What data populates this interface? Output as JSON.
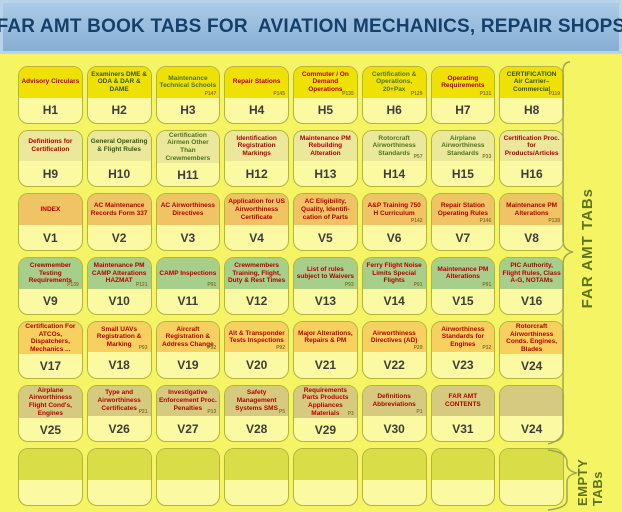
{
  "title_bar": {
    "text": "FAR AMT BOOK TABS FOR  AVIATION MECHANICS, REPAIR SHOPS"
  },
  "side_labels": {
    "far_amt_tabs": "FAR AMT TABs",
    "empty_line1": "EMPTY",
    "empty_line2": "TABs"
  },
  "colors": {
    "page_bg": "#f5f464",
    "titlebar_bg": "#8cb4d8",
    "titlebar_text": "#16406a",
    "card_body": "#fbf9a2",
    "card_border": "#b2b43c",
    "brace": "#9aa452",
    "side_text": "#5e731c",
    "red": "#b30000",
    "green": "#49761d",
    "dark_green": "#2f5715"
  },
  "grid": {
    "rows": [
      {
        "name": "row-1",
        "header_color": "#efe104",
        "cards": [
          {
            "title": "Advisory Circulars",
            "page": "",
            "label": "H1",
            "color": "red"
          },
          {
            "title": "Examiners DME & ODA & DAR & DAME",
            "page": "",
            "label": "H2",
            "color": "dark_green"
          },
          {
            "title": "Maintenance Technical Schools",
            "page": "P147",
            "label": "H3",
            "color": "green"
          },
          {
            "title": "Repair Stations",
            "page": "P145",
            "label": "H4",
            "color": "red"
          },
          {
            "title": "Commuter / On Demand Operations",
            "page": "P135",
            "label": "H5",
            "color": "red"
          },
          {
            "title": "Certification & Operations, 20+Pax",
            "page": "P129",
            "label": "H6",
            "color": "green"
          },
          {
            "title": "Operating Requirements",
            "page": "P131",
            "label": "H7",
            "color": "red"
          },
          {
            "title": "CERTIFICATION Air Carrier– Commercial",
            "page": "P119",
            "label": "H8",
            "color": "dark_green"
          }
        ]
      },
      {
        "name": "row-2",
        "header_color": "#ebe89c",
        "cards": [
          {
            "title": "Definitions for Certification",
            "page": "",
            "label": "H9",
            "color": "red"
          },
          {
            "title": "General Operating & Flight Rules",
            "page": "",
            "label": "H10",
            "color": "dark_green"
          },
          {
            "title": "Certification Airmen Other Than Crewmembers",
            "page": "",
            "label": "H11",
            "color": "green"
          },
          {
            "title": "Identification Registration Markings",
            "page": "",
            "label": "H12",
            "color": "red"
          },
          {
            "title": "Maintenance PM Rebuilding Alteration",
            "page": "",
            "label": "H13",
            "color": "red"
          },
          {
            "title": "Rotorcraft Airworthiness Standards",
            "page": "P57",
            "label": "H14",
            "color": "green"
          },
          {
            "title": "Airplane Airworthiness Standards",
            "page": "P33",
            "label": "H15",
            "color": "green"
          },
          {
            "title": "Certification Proc. for Products/Articles",
            "page": "",
            "label": "H16",
            "color": "red"
          }
        ]
      },
      {
        "name": "row-3",
        "header_color": "#f0c465",
        "cards": [
          {
            "title": "INDEX",
            "page": "",
            "label": "V1",
            "color": "red"
          },
          {
            "title": "AC Maintenance Records Form 337",
            "page": "",
            "label": "V2",
            "color": "red"
          },
          {
            "title": "AC Airworthiness Directives",
            "page": "",
            "label": "V3",
            "color": "red"
          },
          {
            "title": "Application for US Airworthiness Certificate",
            "page": "",
            "label": "V4",
            "color": "red"
          },
          {
            "title": "AC Eligibility, Quality, Identifi- cation of Parts",
            "page": "",
            "label": "V5",
            "color": "red"
          },
          {
            "title": "A&P Training 750 H Curriculum",
            "page": "P142",
            "label": "V6",
            "color": "red"
          },
          {
            "title": "Repair Station Operating Rules",
            "page": "P146",
            "label": "V7",
            "color": "red"
          },
          {
            "title": "Maintenance PM Alterations",
            "page": "P138",
            "label": "V8",
            "color": "red"
          }
        ]
      },
      {
        "name": "row-4",
        "header_color": "#a6cf8b",
        "cards": [
          {
            "title": "Crewmember Testing Requirements",
            "page": "P139",
            "label": "V9",
            "color": "red"
          },
          {
            "title": "Maintenance PM CAMP Alterations HAZMAT",
            "page": "P121",
            "label": "V10",
            "color": "red"
          },
          {
            "title": "CAMP Inspections",
            "page": "P91",
            "label": "V11",
            "color": "red"
          },
          {
            "title": "Crewmembers Training, Flight, Duty & Rest Times",
            "page": "",
            "label": "V12",
            "color": "red"
          },
          {
            "title": "List of rules subject to Waivers",
            "page": "P93",
            "label": "V13",
            "color": "red"
          },
          {
            "title": "Ferry Flight Noise Limits  Special Flights",
            "page": "P91",
            "label": "V14",
            "color": "red"
          },
          {
            "title": "Maintenance PM Alterations",
            "page": "P91",
            "label": "V15",
            "color": "red"
          },
          {
            "title": "PIC Authority, Flight Rules, Class A-G, NOTAMs",
            "page": "",
            "label": "V16",
            "color": "red"
          }
        ]
      },
      {
        "name": "row-5",
        "header_color": "#f8d05f",
        "cards": [
          {
            "title": "Certification For ATCOs, Dispatchers, Mechanics ...",
            "page": "",
            "label": "V17",
            "color": "red"
          },
          {
            "title": "Small UAVs Registration & Marking",
            "page": "P93",
            "label": "V18",
            "color": "red"
          },
          {
            "title": "Aircraft Registration & Address Change",
            "page": "P92",
            "label": "V19",
            "color": "red"
          },
          {
            "title": "Alt & Transponder Tests Inspections",
            "page": "P92",
            "label": "V20",
            "color": "red"
          },
          {
            "title": "Major Alterations, Repairs & PM",
            "page": "",
            "label": "V21",
            "color": "red"
          },
          {
            "title": "Airworthiness Directives (AD)",
            "page": "P29",
            "label": "V22",
            "color": "red"
          },
          {
            "title": "Airworthiness Standards for Engines",
            "page": "P32",
            "label": "V23",
            "color": "red"
          },
          {
            "title": "Rotorcraft Airworthiness Conds. Engines, Blades",
            "page": "",
            "label": "V24",
            "color": "red"
          }
        ]
      },
      {
        "name": "row-6",
        "header_color": "#d6ca80",
        "cards": [
          {
            "title": "Airplane Airworthiness Flight Cond's, Engines",
            "page": "",
            "label": "V25",
            "color": "red"
          },
          {
            "title": "Type and Airworthiness Certificates",
            "page": "P21",
            "label": "V26",
            "color": "red"
          },
          {
            "title": "Investigative Enforcement Proc. Penalties",
            "page": "P13",
            "label": "V27",
            "color": "red"
          },
          {
            "title": "Safety Management Systems SMS",
            "page": "P5",
            "label": "V28",
            "color": "red"
          },
          {
            "title": "Requirements Parts Products Appliances Materials",
            "page": "P3",
            "label": "V29",
            "color": "red"
          },
          {
            "title": "Definitions Abbreviations",
            "page": "P1",
            "label": "V30",
            "color": "red"
          },
          {
            "title": "FAR AMT CONTENTS",
            "page": "",
            "label": "V31",
            "color": "red"
          },
          {
            "title": "",
            "page": "",
            "label": "V24",
            "color": "red"
          }
        ]
      },
      {
        "name": "row-7",
        "header_color": "#d9de48",
        "cards": [
          {
            "title": "",
            "page": "",
            "label": "",
            "color": "red"
          },
          {
            "title": "",
            "page": "",
            "label": "",
            "color": "red"
          },
          {
            "title": "",
            "page": "",
            "label": "",
            "color": "red"
          },
          {
            "title": "",
            "page": "",
            "label": "",
            "color": "red"
          },
          {
            "title": "",
            "page": "",
            "label": "",
            "color": "red"
          },
          {
            "title": "",
            "page": "",
            "label": "",
            "color": "red"
          },
          {
            "title": "",
            "page": "",
            "label": "",
            "color": "red"
          },
          {
            "title": "",
            "page": "",
            "label": "",
            "color": "red"
          }
        ]
      }
    ]
  }
}
